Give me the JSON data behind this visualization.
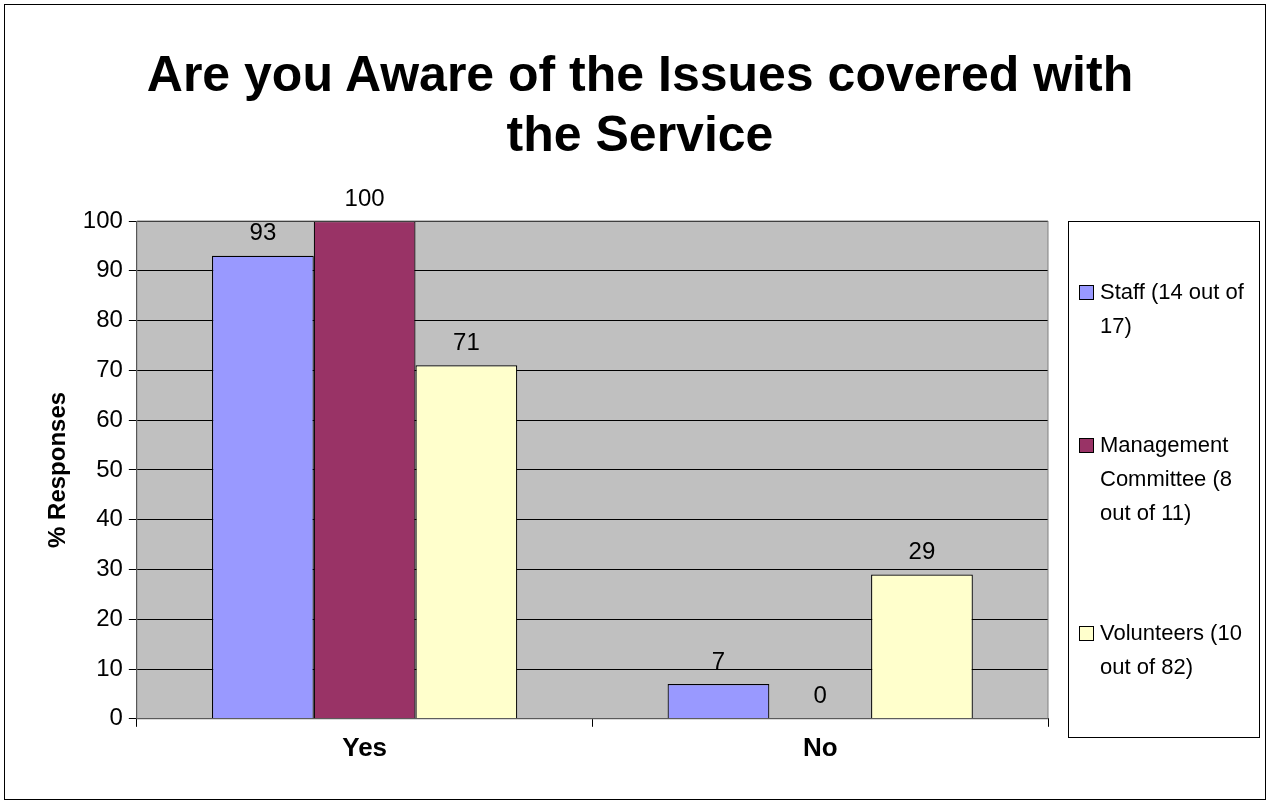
{
  "chart_data": {
    "type": "bar",
    "title": "Are you Aware of the Issues covered with the Service",
    "ylabel": "% Responses",
    "categories": [
      "Yes",
      "No"
    ],
    "series": [
      {
        "name": "Staff (14 out of 17)",
        "color": "#9999ff",
        "values": [
          93,
          7
        ]
      },
      {
        "name": "Management Committee (8 out of 11)",
        "color": "#993366",
        "values": [
          100,
          0
        ]
      },
      {
        "name": "Volunteers (10 out of 82)",
        "color": "#ffffcc",
        "values": [
          71,
          29
        ]
      }
    ],
    "ylim": [
      0,
      100
    ],
    "yticks": [
      0,
      10,
      20,
      30,
      40,
      50,
      60,
      70,
      80,
      90,
      100
    ],
    "grid": "y",
    "legend": "right",
    "data_labels": true
  }
}
